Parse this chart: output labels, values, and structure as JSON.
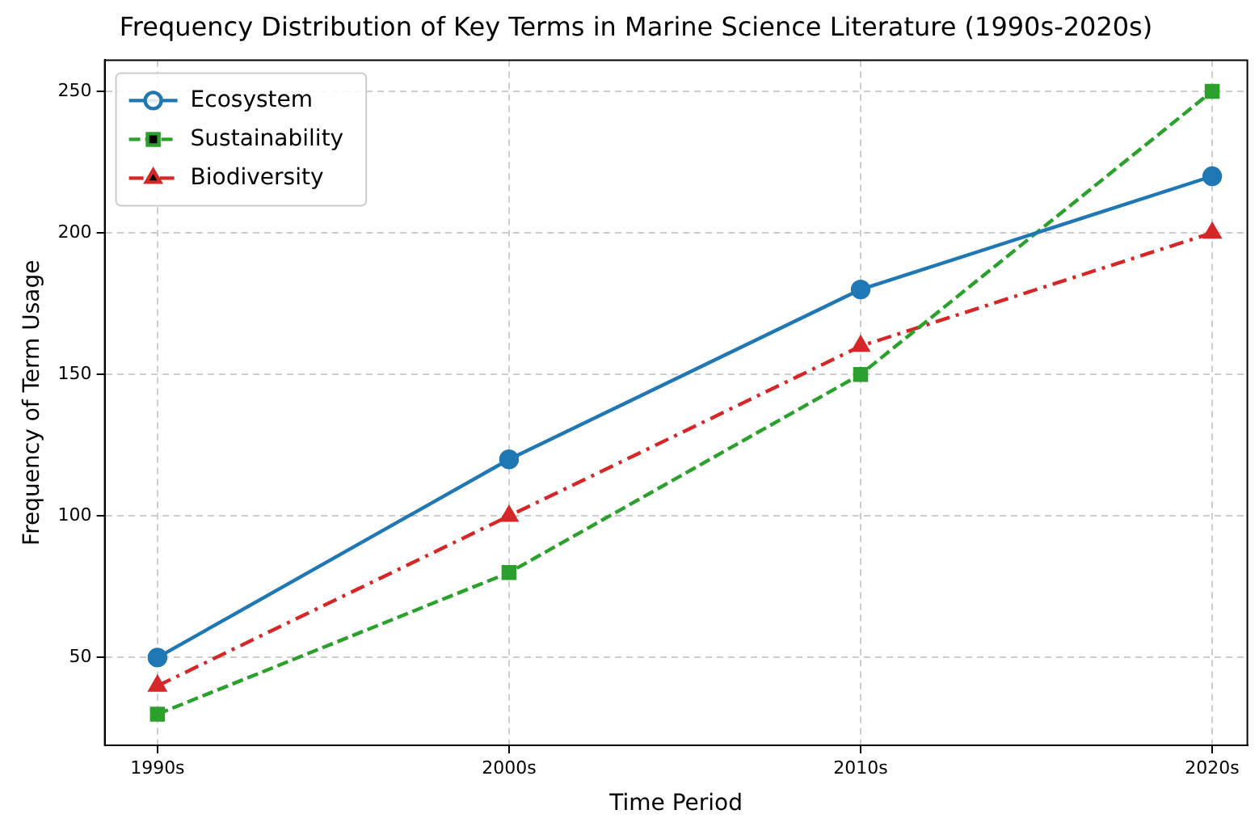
{
  "chart_data": {
    "type": "line",
    "title": "Frequency Distribution of Key Terms in Marine Science Literature (1990s-2020s)",
    "xlabel": "Time Period",
    "ylabel": "Frequency of Term Usage",
    "categories": [
      "1990s",
      "2000s",
      "2010s",
      "2020s"
    ],
    "series": [
      {
        "name": "Ecosystem",
        "color": "#1f77b4",
        "values": [
          50,
          120,
          180,
          220
        ],
        "marker": "circle",
        "line_style": "solid"
      },
      {
        "name": "Sustainability",
        "color": "#2ca02c",
        "values": [
          30,
          80,
          150,
          250
        ],
        "marker": "square",
        "line_style": "dashed"
      },
      {
        "name": "Biodiversity",
        "color": "#d62728",
        "values": [
          40,
          100,
          160,
          200
        ],
        "marker": "triangle",
        "line_style": "dashdot"
      }
    ],
    "ylim": [
      19,
      261
    ],
    "yticks": [
      50,
      100,
      150,
      200,
      250
    ],
    "grid": true,
    "legend": "top left"
  }
}
